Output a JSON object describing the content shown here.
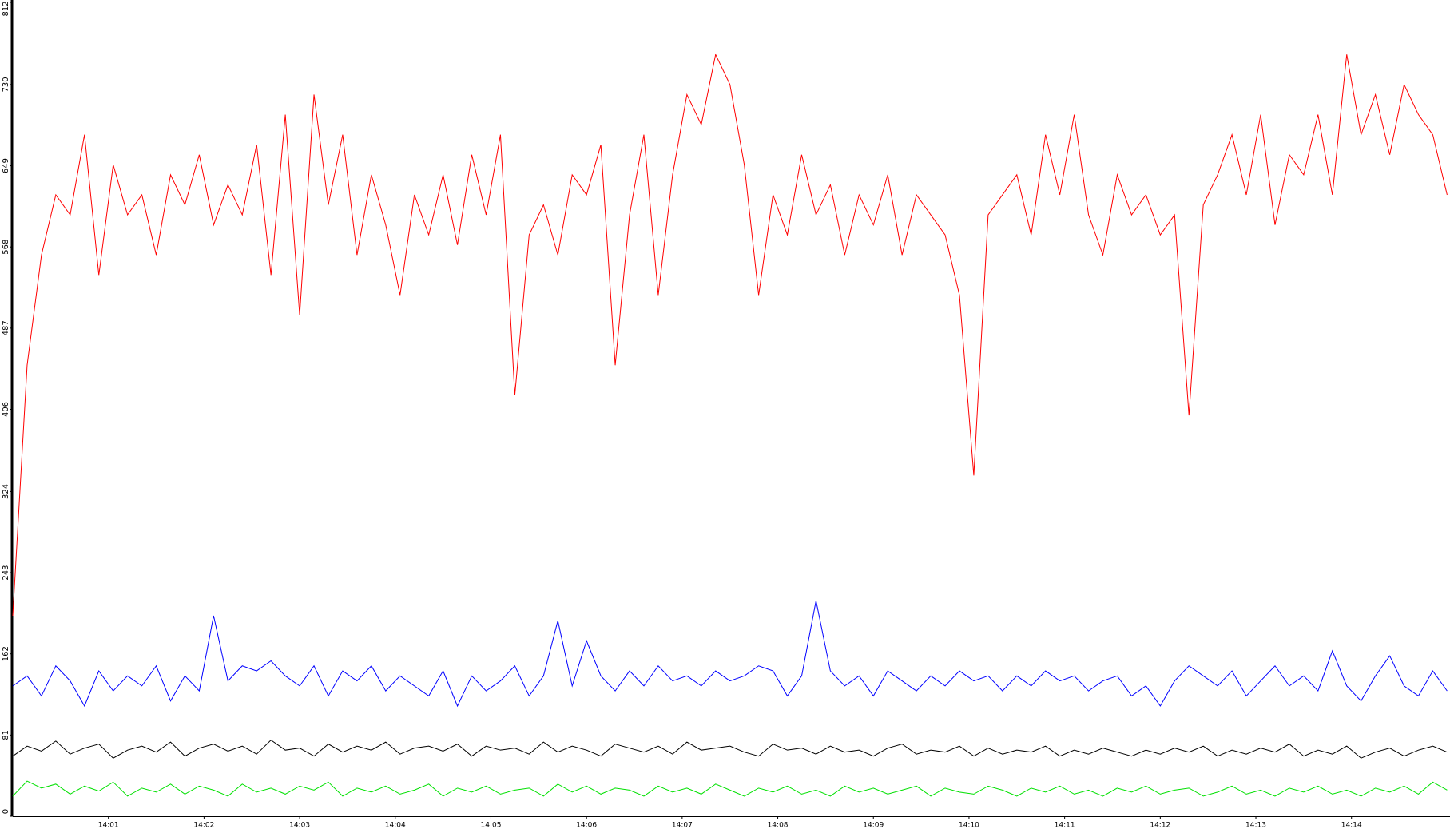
{
  "chart_data": {
    "type": "line",
    "x": [
      0,
      0.15,
      0.3,
      0.45,
      0.6,
      0.75,
      0.9,
      1.05,
      1.2,
      1.35,
      1.5,
      1.65,
      1.8,
      1.95,
      2.1,
      2.25,
      2.4,
      2.55,
      2.7,
      2.85,
      3,
      3.15,
      3.3,
      3.45,
      3.6,
      3.75,
      3.9,
      4.05,
      4.2,
      4.35,
      4.5,
      4.65,
      4.8,
      4.95,
      5.1,
      5.25,
      5.4,
      5.55,
      5.7,
      5.85,
      6,
      6.15,
      6.3,
      6.45,
      6.6,
      6.75,
      6.9,
      7.05,
      7.2,
      7.35,
      7.5,
      7.65,
      7.8,
      7.95,
      8.1,
      8.25,
      8.4,
      8.55,
      8.7,
      8.85,
      9,
      9.15,
      9.3,
      9.45,
      9.6,
      9.75,
      9.9,
      10.05,
      10.2,
      10.35,
      10.5,
      10.65,
      10.8,
      10.95,
      11.1,
      11.25,
      11.4,
      11.55,
      11.7,
      11.85,
      12,
      12.15,
      12.3,
      12.45,
      12.6,
      12.75,
      12.9,
      13.05,
      13.2,
      13.35,
      13.5,
      13.65,
      13.8,
      13.95,
      14.1,
      14.25,
      14.4,
      14.55,
      14.7,
      14.85,
      15
    ],
    "series": [
      {
        "color": "#ff0000",
        "values": [
          200,
          450,
          560,
          620,
          600,
          680,
          540,
          650,
          600,
          620,
          560,
          640,
          610,
          660,
          590,
          630,
          600,
          670,
          540,
          700,
          500,
          720,
          610,
          680,
          560,
          640,
          590,
          520,
          620,
          580,
          640,
          570,
          660,
          600,
          680,
          420,
          580,
          610,
          560,
          640,
          620,
          670,
          450,
          600,
          680,
          520,
          640,
          720,
          690,
          760,
          730,
          650,
          520,
          620,
          580,
          660,
          600,
          630,
          560,
          620,
          590,
          640,
          560,
          620,
          600,
          580,
          520,
          340,
          600,
          620,
          640,
          580,
          680,
          620,
          700,
          600,
          560,
          640,
          600,
          620,
          580,
          600,
          400,
          610,
          640,
          680,
          620,
          700,
          590,
          660,
          640,
          700,
          620,
          760,
          680,
          720,
          660,
          730,
          700,
          680,
          620
        ]
      },
      {
        "color": "#0000ff",
        "values": [
          130,
          140,
          120,
          150,
          135,
          110,
          145,
          125,
          140,
          130,
          150,
          115,
          140,
          125,
          200,
          135,
          150,
          145,
          155,
          140,
          130,
          150,
          120,
          145,
          135,
          150,
          125,
          140,
          130,
          120,
          145,
          110,
          140,
          125,
          135,
          150,
          120,
          140,
          195,
          130,
          175,
          140,
          125,
          145,
          130,
          150,
          135,
          140,
          130,
          145,
          135,
          140,
          150,
          145,
          120,
          140,
          215,
          145,
          130,
          140,
          120,
          145,
          135,
          125,
          140,
          130,
          145,
          135,
          140,
          125,
          140,
          130,
          145,
          135,
          140,
          125,
          135,
          140,
          120,
          130,
          110,
          135,
          150,
          140,
          130,
          145,
          120,
          135,
          150,
          130,
          140,
          125,
          165,
          130,
          115,
          140,
          160,
          130,
          120,
          145,
          125
        ]
      },
      {
        "color": "#000000",
        "values": [
          60,
          70,
          65,
          75,
          62,
          68,
          72,
          58,
          66,
          70,
          64,
          74,
          60,
          68,
          72,
          65,
          70,
          62,
          76,
          66,
          68,
          60,
          72,
          64,
          70,
          66,
          74,
          62,
          68,
          70,
          65,
          72,
          60,
          70,
          66,
          68,
          62,
          74,
          64,
          70,
          66,
          60,
          72,
          68,
          64,
          70,
          62,
          74,
          66,
          68,
          70,
          64,
          60,
          72,
          66,
          68,
          62,
          70,
          64,
          66,
          60,
          68,
          72,
          62,
          66,
          64,
          70,
          60,
          68,
          62,
          66,
          64,
          70,
          60,
          66,
          62,
          68,
          64,
          60,
          66,
          62,
          68,
          64,
          70,
          60,
          66,
          62,
          68,
          64,
          72,
          60,
          66,
          62,
          70,
          58,
          64,
          68,
          60,
          66,
          70,
          64
        ]
      },
      {
        "color": "#00e000",
        "values": [
          20,
          35,
          28,
          32,
          22,
          30,
          25,
          34,
          20,
          28,
          24,
          32,
          22,
          30,
          26,
          20,
          32,
          24,
          28,
          22,
          30,
          26,
          34,
          20,
          28,
          24,
          30,
          22,
          26,
          32,
          20,
          28,
          24,
          30,
          22,
          26,
          28,
          20,
          32,
          24,
          30,
          22,
          28,
          26,
          20,
          30,
          24,
          28,
          22,
          32,
          26,
          20,
          28,
          24,
          30,
          22,
          26,
          20,
          30,
          24,
          28,
          22,
          26,
          30,
          20,
          28,
          24,
          22,
          30,
          26,
          20,
          28,
          24,
          30,
          22,
          26,
          20,
          28,
          24,
          30,
          22,
          26,
          28,
          20,
          24,
          30,
          22,
          26,
          20,
          28,
          24,
          30,
          22,
          26,
          20,
          28,
          24,
          30,
          22,
          34,
          26
        ]
      }
    ],
    "xlim": [
      0,
      15.03
    ],
    "xticks": [
      {
        "value": 1,
        "label": "14:01"
      },
      {
        "value": 2,
        "label": "14:02"
      },
      {
        "value": 3,
        "label": "14:03"
      },
      {
        "value": 4,
        "label": "14:04"
      },
      {
        "value": 5,
        "label": "14:05"
      },
      {
        "value": 6,
        "label": "14:06"
      },
      {
        "value": 7,
        "label": "14:07"
      },
      {
        "value": 8,
        "label": "14:08"
      },
      {
        "value": 9,
        "label": "14:09"
      },
      {
        "value": 10,
        "label": "14:10"
      },
      {
        "value": 11,
        "label": "14:11"
      },
      {
        "value": 12,
        "label": "14:12"
      },
      {
        "value": 13,
        "label": "14:13"
      },
      {
        "value": 14,
        "label": "14:14"
      }
    ],
    "ylim": [
      0,
      812
    ],
    "yticks": [
      0,
      81,
      162,
      243,
      324,
      406,
      487,
      568,
      649,
      730,
      812
    ],
    "grid": false
  }
}
